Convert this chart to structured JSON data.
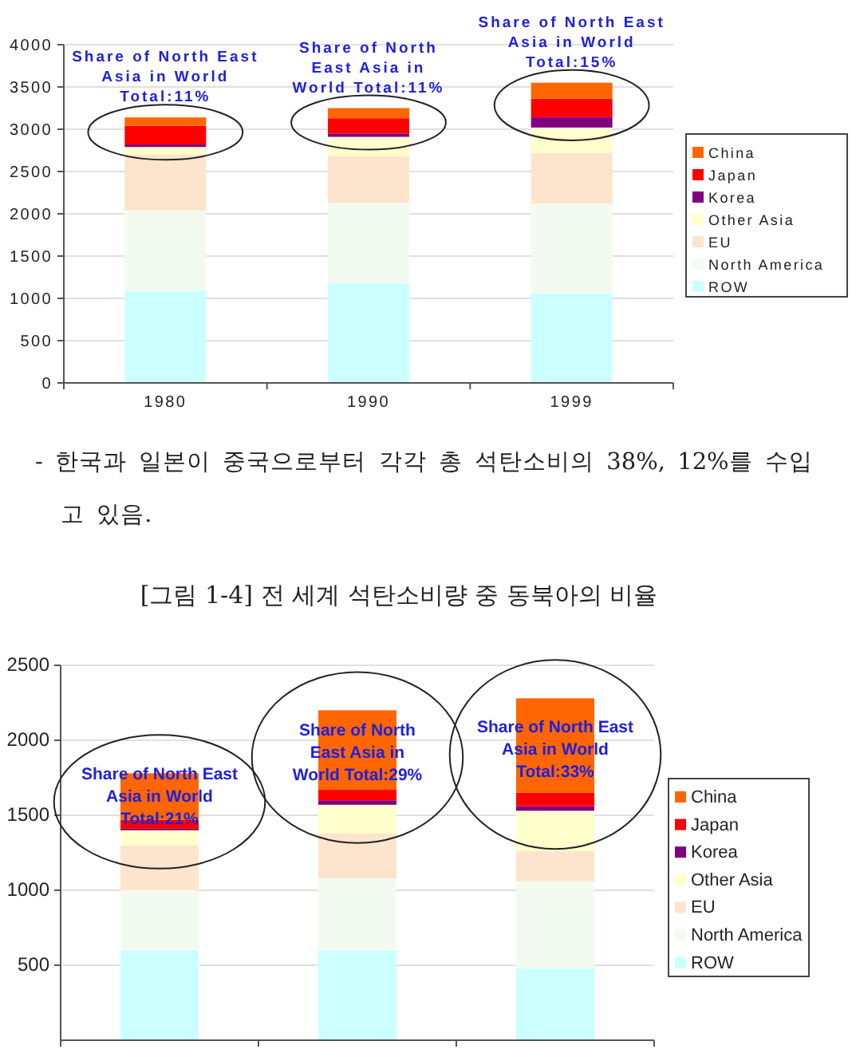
{
  "chart_data": [
    {
      "type": "bar",
      "stacked": true,
      "categories": [
        "1980",
        "1990",
        "1999"
      ],
      "series": [
        {
          "name": "ROW",
          "color": "#ccffff",
          "values": [
            1090,
            1180,
            1060
          ]
        },
        {
          "name": "North America",
          "color": "#f3fbf1",
          "values": [
            950,
            950,
            1060
          ]
        },
        {
          "name": "EU",
          "color": "#fde4cc",
          "values": [
            660,
            550,
            600
          ]
        },
        {
          "name": "Other Asia",
          "color": "#ffffcc",
          "values": [
            90,
            230,
            300
          ]
        },
        {
          "name": "Korea",
          "color": "#800080",
          "values": [
            30,
            40,
            120
          ]
        },
        {
          "name": "Japan",
          "color": "#ff0000",
          "values": [
            220,
            180,
            220
          ]
        },
        {
          "name": "China",
          "color": "#ff6600",
          "values": [
            100,
            120,
            190
          ]
        }
      ],
      "ylim": [
        0,
        4000
      ],
      "yticks": [
        0,
        500,
        1000,
        1500,
        2000,
        2500,
        3000,
        3500,
        4000
      ],
      "grid": "y",
      "legend": "right",
      "annotations": [
        "Share of North East\nAsia in World\nTotal:11%",
        "Share of North\nEast Asia in\nWorld Total:11%",
        "Share of North East\nAsia in World\nTotal:15%",
        "- 한국과 일본이 중국으로부터 각각 총 석탄소비의 38%, 12%를 수입",
        "고 있음."
      ]
    },
    {
      "type": "bar",
      "stacked": true,
      "title": "[그림 1-4] 전 세계 석탄소비량 중 동북아의 비율",
      "categories": [
        null,
        null,
        null
      ],
      "series": [
        {
          "name": "ROW",
          "color": "#ccffff",
          "values": [
            600,
            600,
            480
          ]
        },
        {
          "name": "North America",
          "color": "#f3fbf1",
          "values": [
            400,
            480,
            580
          ]
        },
        {
          "name": "EU",
          "color": "#fde4cc",
          "values": [
            300,
            300,
            200
          ]
        },
        {
          "name": "Other Asia",
          "color": "#ffffcc",
          "values": [
            100,
            190,
            270
          ]
        },
        {
          "name": "Korea",
          "color": "#800080",
          "values": [
            10,
            30,
            30
          ]
        },
        {
          "name": "Japan",
          "color": "#ff0000",
          "values": [
            60,
            70,
            90
          ]
        },
        {
          "name": "China",
          "color": "#ff6600",
          "values": [
            310,
            530,
            630
          ]
        }
      ],
      "ylim": [
        0,
        2500
      ],
      "yticks": [
        500,
        1000,
        1500,
        2000,
        2500
      ],
      "grid": "y",
      "legend": "right",
      "tick_labels": "y",
      "annotations": [
        "Share of North East\nAsia in World\nTotal:21%",
        "Share of North\nEast Asia in\nWorld Total:29%",
        "Share of North East\nAsia in World\nTotal:33%"
      ]
    }
  ]
}
